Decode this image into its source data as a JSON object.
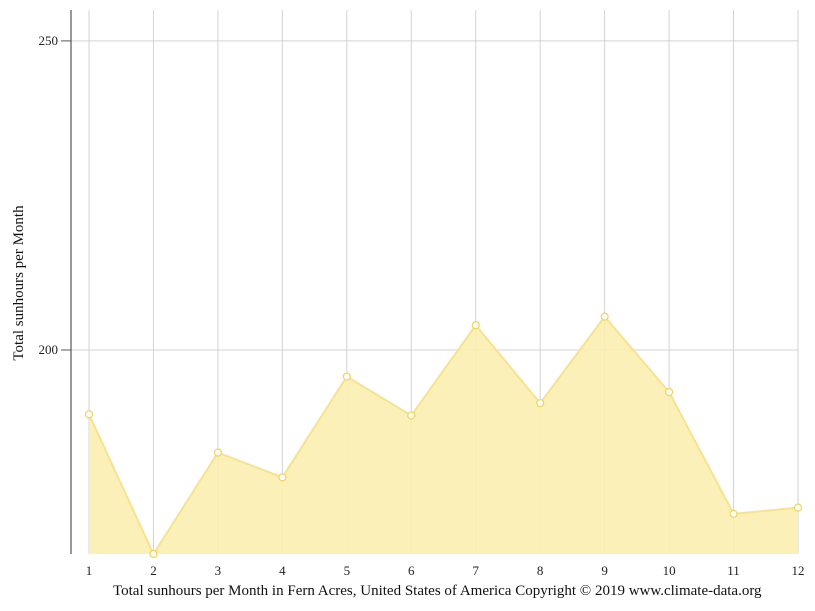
{
  "chart_data": {
    "type": "area",
    "title": "",
    "xlabel": "",
    "ylabel": "Total sunhours per Month",
    "x": [
      "1",
      "2",
      "3",
      "4",
      "5",
      "6",
      "7",
      "8",
      "9",
      "10",
      "11",
      "12"
    ],
    "series": [
      {
        "values": [
          189.6,
          167.0,
          183.4,
          179.4,
          195.7,
          189.4,
          204.0,
          191.4,
          205.4,
          193.2,
          173.5,
          174.5
        ]
      }
    ],
    "ylim": [
      167,
      255
    ],
    "yticks": [
      "200",
      "250"
    ],
    "ytick_values": [
      200,
      250
    ],
    "grid": true,
    "legend": "none",
    "colors": {
      "fill": "#f9eeb0",
      "line": "#f7e28d",
      "marker_fill": "#ffffff",
      "marker_stroke": "#f1d35a",
      "grid": "#d3d3d3",
      "axis": "#555555"
    }
  },
  "caption": "Total sunhours per Month in Fern Acres, United States of America Copyright © 2019 www.climate-data.org"
}
